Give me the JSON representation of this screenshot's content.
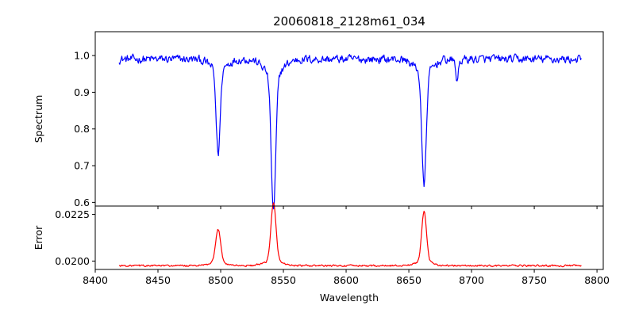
{
  "chart_data": [
    {
      "type": "line",
      "panel": "spectrum",
      "title": "20060818_2128m61_034",
      "xlabel": "",
      "ylabel": "Spectrum",
      "xlim": [
        8400,
        8805
      ],
      "ylim": [
        0.59,
        1.065
      ],
      "x_ticks": [
        8400,
        8450,
        8500,
        8550,
        8600,
        8650,
        8700,
        8750,
        8800
      ],
      "y_ticks": [
        0.6,
        0.7,
        0.8,
        0.9,
        1.0
      ],
      "y_tick_labels": [
        "0.6",
        "0.7",
        "0.8",
        "0.9",
        "1.0"
      ],
      "grid": false,
      "series": [
        {
          "color": "#0000ff",
          "x_range": [
            8419,
            8788
          ],
          "continuum": 0.99,
          "noise_amplitude": 0.018,
          "absorption_lines": [
            {
              "center": 8498.0,
              "depth": 0.23,
              "width": 1.6
            },
            {
              "center": 8542.1,
              "depth": 0.37,
              "width": 1.8
            },
            {
              "center": 8662.1,
              "depth": 0.31,
              "width": 1.7
            },
            {
              "center": 8688.5,
              "depth": 0.06,
              "width": 0.8
            }
          ],
          "samples": [
            [
              8419,
              0.99
            ],
            [
              8430,
              1.0
            ],
            [
              8450,
              0.99
            ],
            [
              8470,
              0.99
            ],
            [
              8490,
              0.97
            ],
            [
              8497,
              0.77
            ],
            [
              8499,
              0.77
            ],
            [
              8505,
              0.97
            ],
            [
              8520,
              0.99
            ],
            [
              8535,
              0.95
            ],
            [
              8541,
              0.62
            ],
            [
              8543,
              0.62
            ],
            [
              8550,
              0.94
            ],
            [
              8560,
              0.97
            ],
            [
              8580,
              1.0
            ],
            [
              8600,
              1.0
            ],
            [
              8620,
              1.01
            ],
            [
              8640,
              1.0
            ],
            [
              8655,
              0.96
            ],
            [
              8661,
              0.66
            ],
            [
              8663,
              0.66
            ],
            [
              8670,
              0.94
            ],
            [
              8688,
              0.9
            ],
            [
              8700,
              0.99
            ],
            [
              8720,
              1.03
            ],
            [
              8740,
              0.97
            ],
            [
              8760,
              0.99
            ],
            [
              8788,
              0.99
            ]
          ]
        }
      ]
    },
    {
      "type": "line",
      "panel": "error",
      "title": "",
      "xlabel": "Wavelength",
      "ylabel": "Error",
      "xlim": [
        8400,
        8805
      ],
      "ylim": [
        0.01955,
        0.02295
      ],
      "x_ticks": [
        8400,
        8450,
        8500,
        8550,
        8600,
        8650,
        8700,
        8750,
        8800
      ],
      "x_tick_labels": [
        "8400",
        "8450",
        "8500",
        "8550",
        "8600",
        "8650",
        "8700",
        "8750",
        "8800"
      ],
      "y_ticks": [
        0.02,
        0.0225
      ],
      "y_tick_labels": [
        "0.0200",
        "0.0225"
      ],
      "grid": false,
      "series": [
        {
          "color": "#ff0000",
          "x_range": [
            8419,
            8788
          ],
          "baseline": 0.01975,
          "noise_amplitude": 7e-05,
          "emission_peaks": [
            {
              "center": 8498.0,
              "height": 0.0018,
              "width": 2.0
            },
            {
              "center": 8542.1,
              "height": 0.0031,
              "width": 2.0
            },
            {
              "center": 8662.1,
              "height": 0.0027,
              "width": 1.9
            }
          ],
          "samples": [
            [
              8419,
              0.01975
            ],
            [
              8450,
              0.01975
            ],
            [
              8467,
              0.0201
            ],
            [
              8490,
              0.01985
            ],
            [
              8498,
              0.0216
            ],
            [
              8505,
              0.0199
            ],
            [
              8530,
              0.01975
            ],
            [
              8538,
              0.02
            ],
            [
              8542,
              0.0228
            ],
            [
              8547,
              0.0201
            ],
            [
              8560,
              0.0198
            ],
            [
              8600,
              0.01975
            ],
            [
              8650,
              0.0199
            ],
            [
              8661,
              0.0225
            ],
            [
              8663,
              0.0224
            ],
            [
              8668,
              0.01995
            ],
            [
              8680,
              0.0199
            ],
            [
              8700,
              0.01975
            ],
            [
              8750,
              0.0198
            ],
            [
              8788,
              0.01975
            ]
          ]
        }
      ]
    }
  ]
}
